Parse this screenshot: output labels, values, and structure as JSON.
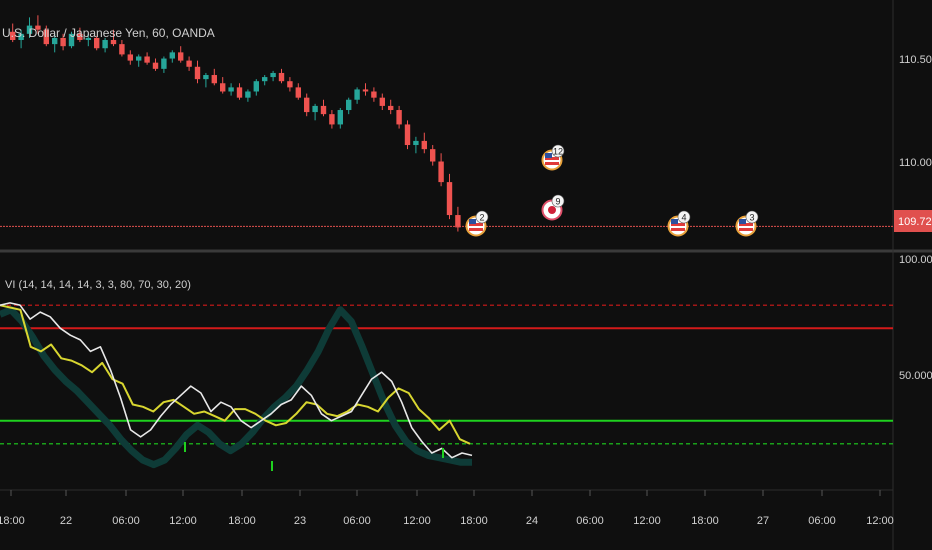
{
  "main_pane": {
    "symbol_label": "U.S. Dollar / Japanese Yen, 60, OANDA",
    "price_ticks": [
      "110.500",
      "110.000"
    ],
    "current_price": "109.725",
    "event_markers": [
      {
        "flag": "us-flag-icon",
        "count": "2"
      },
      {
        "flag": "us-flag-icon",
        "count": "12"
      },
      {
        "flag": "jp-flag-icon",
        "count": "9"
      },
      {
        "flag": "us-flag-icon",
        "count": "4"
      },
      {
        "flag": "us-flag-icon",
        "count": "3"
      }
    ]
  },
  "indicator_pane": {
    "label": "VI (14, 14, 14, 14, 3, 3, 80, 70, 30, 20)",
    "ticks": [
      "100.000",
      "50.000"
    ]
  },
  "time_axis": {
    "labels": [
      "18:00",
      "22",
      "06:00",
      "12:00",
      "18:00",
      "23",
      "06:00",
      "12:00",
      "18:00",
      "24",
      "06:00",
      "12:00",
      "18:00",
      "27",
      "06:00",
      "12:00"
    ]
  },
  "colors": {
    "background": "#0f0f0f",
    "bull": "#26a69a",
    "bear": "#ef5350",
    "price_line": "#e0504e",
    "level_red": "#d41a1a",
    "level_green": "#1fd11f",
    "line_yellow": "#d8d630",
    "line_white": "#e8e8e8",
    "line_teal": "#0e3b37",
    "marker_ring": "#e8a13a",
    "marker_ring_jp": "#e0506a"
  },
  "chart_data": {
    "type": "candlestick",
    "price_scale": [
      109.62,
      110.8
    ],
    "indicator_scale": [
      0,
      100
    ],
    "levels": {
      "upper_dashed": 80,
      "upper_solid": 70,
      "lower_solid": 30,
      "lower_dashed": 20
    },
    "candles": [
      [
        110.67,
        110.71,
        110.62,
        110.63
      ],
      [
        110.63,
        110.68,
        110.59,
        110.66
      ],
      [
        110.66,
        110.74,
        110.64,
        110.7
      ],
      [
        110.7,
        110.75,
        110.66,
        110.68
      ],
      [
        110.68,
        110.7,
        110.6,
        110.61
      ],
      [
        110.61,
        110.66,
        110.57,
        110.64
      ],
      [
        110.64,
        110.66,
        110.58,
        110.6
      ],
      [
        110.6,
        110.67,
        110.59,
        110.66
      ],
      [
        110.66,
        110.69,
        110.62,
        110.63
      ],
      [
        110.63,
        110.66,
        110.6,
        110.64
      ],
      [
        110.64,
        110.65,
        110.58,
        110.59
      ],
      [
        110.59,
        110.64,
        110.57,
        110.63
      ],
      [
        110.63,
        110.68,
        110.6,
        110.61
      ],
      [
        110.61,
        110.63,
        110.55,
        110.56
      ],
      [
        110.56,
        110.58,
        110.51,
        110.53
      ],
      [
        110.53,
        110.56,
        110.5,
        110.55
      ],
      [
        110.55,
        110.57,
        110.51,
        110.52
      ],
      [
        110.52,
        110.54,
        110.48,
        110.49
      ],
      [
        110.49,
        110.55,
        110.47,
        110.54
      ],
      [
        110.54,
        110.58,
        110.52,
        110.57
      ],
      [
        110.57,
        110.6,
        110.52,
        110.53
      ],
      [
        110.53,
        110.55,
        110.48,
        110.5
      ],
      [
        110.5,
        110.53,
        110.42,
        110.44
      ],
      [
        110.44,
        110.47,
        110.4,
        110.46
      ],
      [
        110.46,
        110.49,
        110.41,
        110.42
      ],
      [
        110.42,
        110.45,
        110.37,
        110.38
      ],
      [
        110.38,
        110.42,
        110.36,
        110.4
      ],
      [
        110.4,
        110.42,
        110.34,
        110.35
      ],
      [
        110.35,
        110.39,
        110.33,
        110.38
      ],
      [
        110.38,
        110.44,
        110.36,
        110.43
      ],
      [
        110.43,
        110.46,
        110.41,
        110.45
      ],
      [
        110.45,
        110.48,
        110.43,
        110.47
      ],
      [
        110.47,
        110.49,
        110.42,
        110.43
      ],
      [
        110.43,
        110.45,
        110.38,
        110.4
      ],
      [
        110.4,
        110.42,
        110.34,
        110.35
      ],
      [
        110.35,
        110.37,
        110.26,
        110.28
      ],
      [
        110.28,
        110.32,
        110.24,
        110.31
      ],
      [
        110.31,
        110.34,
        110.26,
        110.27
      ],
      [
        110.27,
        110.29,
        110.2,
        110.22
      ],
      [
        110.22,
        110.3,
        110.2,
        110.29
      ],
      [
        110.29,
        110.35,
        110.27,
        110.34
      ],
      [
        110.34,
        110.4,
        110.32,
        110.39
      ],
      [
        110.39,
        110.42,
        110.36,
        110.38
      ],
      [
        110.38,
        110.4,
        110.33,
        110.35
      ],
      [
        110.35,
        110.37,
        110.29,
        110.31
      ],
      [
        110.31,
        110.34,
        110.27,
        110.29
      ],
      [
        110.29,
        110.31,
        110.2,
        110.22
      ],
      [
        110.22,
        110.24,
        110.1,
        110.12
      ],
      [
        110.12,
        110.16,
        110.08,
        110.14
      ],
      [
        110.14,
        110.18,
        110.08,
        110.1
      ],
      [
        110.1,
        110.12,
        110.02,
        110.04
      ],
      [
        110.04,
        110.08,
        109.92,
        109.94
      ],
      [
        109.94,
        109.98,
        109.76,
        109.78
      ],
      [
        109.78,
        109.82,
        109.7,
        109.72
      ]
    ],
    "indicator_series": {
      "yellow": [
        80,
        79,
        78,
        62,
        60,
        63,
        57,
        56,
        54,
        51,
        55,
        48,
        46,
        37,
        36,
        34,
        38,
        39,
        36,
        33,
        34,
        32,
        30,
        35,
        35,
        33,
        30,
        28,
        29,
        33,
        38,
        37,
        33,
        32,
        34,
        37,
        36,
        34,
        40,
        44,
        42,
        35,
        31,
        26,
        30,
        22,
        20
      ],
      "white": [
        80,
        81,
        80,
        74,
        77,
        75,
        70,
        67,
        65,
        60,
        62,
        52,
        40,
        26,
        23,
        26,
        32,
        37,
        41,
        45,
        42,
        34,
        38,
        36,
        30,
        27,
        30,
        33,
        37,
        39,
        45,
        41,
        33,
        30,
        32,
        34,
        41,
        48,
        51,
        47,
        38,
        27,
        21,
        16,
        18,
        14,
        16,
        15
      ],
      "teal": [
        76,
        78,
        73,
        66,
        58,
        52,
        47,
        43,
        38,
        33,
        28,
        22,
        17,
        13,
        11,
        13,
        18,
        24,
        28,
        25,
        20,
        17,
        20,
        25,
        31,
        36,
        40,
        45,
        52,
        60,
        70,
        78,
        73,
        62,
        50,
        38,
        28,
        21,
        17,
        15,
        14,
        13,
        12,
        12
      ]
    }
  }
}
